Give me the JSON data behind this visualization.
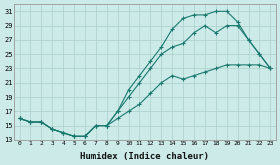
{
  "title": "",
  "xlabel": "Humidex (Indice chaleur)",
  "ylabel": "",
  "background_color": "#cceae8",
  "grid_color": "#b0d4d0",
  "line_color": "#1a7a70",
  "ylim": [
    13,
    32
  ],
  "xlim": [
    -0.5,
    23.5
  ],
  "yticks": [
    13,
    15,
    17,
    19,
    21,
    23,
    25,
    27,
    29,
    31
  ],
  "xticks": [
    0,
    1,
    2,
    3,
    4,
    5,
    6,
    7,
    8,
    9,
    10,
    11,
    12,
    13,
    14,
    15,
    16,
    17,
    18,
    19,
    20,
    21,
    22,
    23
  ],
  "line1_x": [
    0,
    1,
    2,
    3,
    4,
    5,
    6,
    7,
    8,
    9,
    10,
    11,
    12,
    13,
    14,
    15,
    16,
    17,
    18,
    19,
    20,
    21,
    22,
    23
  ],
  "line1_y": [
    16,
    15.5,
    15.5,
    14.5,
    14,
    13.5,
    13.5,
    15,
    15,
    16,
    17,
    18,
    19.5,
    21,
    22,
    21.5,
    22,
    22.5,
    23,
    23.5,
    23.5,
    23.5,
    23.5,
    23
  ],
  "line2_x": [
    0,
    1,
    2,
    3,
    4,
    5,
    6,
    7,
    8,
    9,
    10,
    11,
    12,
    13,
    14,
    15,
    16,
    17,
    18,
    19,
    20,
    21,
    22,
    23
  ],
  "line2_y": [
    16,
    15.5,
    15.5,
    14.5,
    14,
    13.5,
    13.5,
    15,
    15,
    17,
    19,
    21,
    23,
    25,
    26,
    26.5,
    28,
    29,
    28,
    29,
    29,
    27,
    25,
    23
  ],
  "line3_x": [
    0,
    1,
    2,
    3,
    4,
    5,
    6,
    7,
    8,
    9,
    10,
    11,
    12,
    13,
    14,
    15,
    16,
    17,
    18,
    19,
    20,
    21,
    22,
    23
  ],
  "line3_y": [
    16,
    15.5,
    15.5,
    14.5,
    14,
    13.5,
    13.5,
    15,
    15,
    17,
    20,
    22,
    24,
    26,
    28.5,
    30,
    30.5,
    30.5,
    31,
    31,
    29.5,
    27,
    25,
    23
  ]
}
